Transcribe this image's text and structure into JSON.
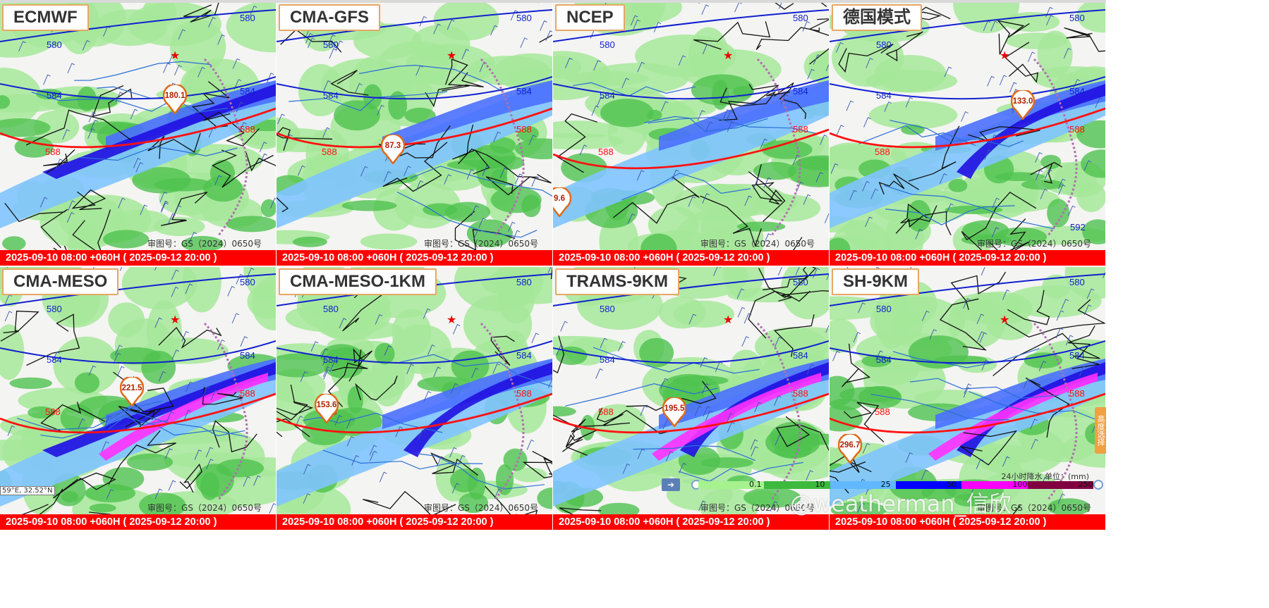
{
  "panels": [
    {
      "model": "ECMWF",
      "max": "180.1",
      "rain_level": 2
    },
    {
      "model": "CMA-GFS",
      "max": "87.3",
      "rain_level": 1
    },
    {
      "model": "NCEP",
      "max": "9.6",
      "rain_level": 1
    },
    {
      "model": "德国模式",
      "max": "133.0",
      "rain_level": 2
    },
    {
      "model": "CMA-MESO",
      "max": "221.5",
      "rain_level": 3
    },
    {
      "model": "CMA-MESO-1KM",
      "max": "153.6",
      "rain_level": 2
    },
    {
      "model": "TRAMS-9KM",
      "max": "195.5",
      "rain_level": 3
    },
    {
      "model": "SH-9KM",
      "max": "296.7",
      "rain_level": 3
    }
  ],
  "contour_labels": {
    "c580": "580",
    "c584": "584",
    "c588": "588",
    "c592": "592"
  },
  "footer": {
    "approval": "审图号：GS（2024）0650号",
    "time": "2025-09-10 08:00 +060H ( 2025-09-12 20:00 )"
  },
  "coord_readout": "59°E, 32.52°N",
  "side_tab": "高度选择",
  "legend": {
    "title": "24小时降水 单位：(mm)",
    "ticks": [
      "0.1",
      "10",
      "25",
      "50",
      "100",
      "250"
    ],
    "colors": [
      "#a6f28f",
      "#3dba3d",
      "#61b8ff",
      "#0000ff",
      "#fa00fa",
      "#800040"
    ]
  },
  "watermark": "@weatherman_信欣",
  "colors": {
    "blue_contour": "#1020d0",
    "red_contour": "#ff1010",
    "label_border": "#e7a765"
  }
}
